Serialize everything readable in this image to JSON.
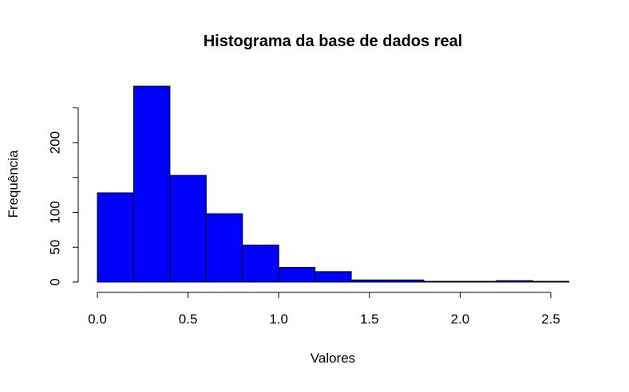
{
  "chart_data": {
    "type": "bar",
    "title": "Histograma da base de dados real",
    "xlabel": "Valores",
    "ylabel": "Frequência",
    "bin_edges": [
      0.0,
      0.2,
      0.4,
      0.6,
      0.8,
      1.0,
      1.2,
      1.4,
      1.6,
      1.8,
      2.0,
      2.2,
      2.4,
      2.6
    ],
    "values": [
      128,
      281,
      153,
      98,
      53,
      21,
      15,
      3,
      3,
      1,
      1,
      2,
      1
    ],
    "xlim": [
      0.0,
      2.6
    ],
    "ylim": [
      0,
      250
    ],
    "x_ticks": [
      0.0,
      0.5,
      1.0,
      1.5,
      2.0,
      2.5
    ],
    "x_tick_labels": [
      "0.0",
      "0.5",
      "1.0",
      "1.5",
      "2.0",
      "2.5"
    ],
    "y_ticks": [
      0,
      50,
      100,
      150,
      200,
      250
    ],
    "y_tick_labels": [
      "0",
      "50",
      "100",
      "",
      "200",
      ""
    ],
    "bar_color": "#0000FF",
    "bar_border_color": "#000000",
    "grid": false,
    "legend": "none"
  }
}
